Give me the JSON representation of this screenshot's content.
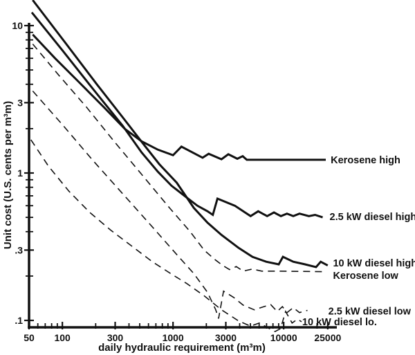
{
  "chart_data": {
    "type": "line",
    "grid": false,
    "legend_position": "right-inline",
    "x_axis": {
      "label": "daily hydraulic requirement (m³m)",
      "scale": "log",
      "range": [
        50,
        28000
      ],
      "major_ticks": [
        {
          "v": 50,
          "label": "50"
        },
        {
          "v": 100,
          "label": "100"
        },
        {
          "v": 300,
          "label": "300"
        },
        {
          "v": 1000,
          "label": "1000"
        },
        {
          "v": 3000,
          "label": "3000"
        },
        {
          "v": 10000,
          "label": "10000"
        },
        {
          "v": 25000,
          "label": "25000"
        }
      ],
      "minor_ticks": [
        60,
        70,
        80,
        90,
        200,
        400,
        500,
        600,
        700,
        800,
        900,
        2000,
        4000,
        5000,
        6000,
        7000,
        8000,
        9000,
        20000
      ]
    },
    "y_axis": {
      "label": "Unit cost (U.S. cents per m³m)",
      "scale": "log",
      "range": [
        0.1,
        15
      ],
      "major_ticks": [
        {
          "v": 10,
          "label": "10"
        },
        {
          "v": 3,
          "label": "3"
        },
        {
          "v": 1,
          "label": "1"
        },
        {
          "v": 0.3,
          "label": ".3"
        },
        {
          "v": 0.1,
          "label": ".1"
        }
      ],
      "minor_ticks": [
        9,
        8,
        7,
        6,
        5,
        4,
        2,
        0.9,
        0.8,
        0.7,
        0.6,
        0.5,
        0.4,
        0.2
      ]
    },
    "series": [
      {
        "id": "kerosene-high",
        "name": "Kerosene high",
        "line": "solid",
        "points": [
          [
            54,
            8.7
          ],
          [
            86,
            6.0
          ],
          [
            143,
            4.1
          ],
          [
            237,
            2.8
          ],
          [
            365,
            2.0
          ],
          [
            520,
            1.64
          ],
          [
            730,
            1.44
          ],
          [
            1000,
            1.32
          ],
          [
            1190,
            1.51
          ],
          [
            1850,
            1.27
          ],
          [
            2100,
            1.35
          ],
          [
            2740,
            1.24
          ],
          [
            3160,
            1.34
          ],
          [
            3810,
            1.25
          ],
          [
            4260,
            1.3
          ],
          [
            4640,
            1.23
          ],
          [
            24000,
            1.23
          ]
        ]
      },
      {
        "id": "diesel-2-5kw-high",
        "name": "2.5 kW diesel high",
        "line": "solid",
        "points": [
          [
            53,
            12.3
          ],
          [
            100,
            6.8
          ],
          [
            190,
            3.7
          ],
          [
            353,
            2.08
          ],
          [
            520,
            1.38
          ],
          [
            730,
            1.02
          ],
          [
            970,
            0.82
          ],
          [
            1300,
            0.69
          ],
          [
            1660,
            0.6
          ],
          [
            2050,
            0.55
          ],
          [
            2290,
            0.52
          ],
          [
            2520,
            0.67
          ],
          [
            3620,
            0.6
          ],
          [
            5020,
            0.51
          ],
          [
            5880,
            0.55
          ],
          [
            7080,
            0.51
          ],
          [
            8170,
            0.54
          ],
          [
            9430,
            0.51
          ],
          [
            10700,
            0.53
          ],
          [
            12200,
            0.51
          ],
          [
            13900,
            0.53
          ],
          [
            16900,
            0.51
          ],
          [
            19200,
            0.52
          ],
          [
            22500,
            0.5
          ]
        ]
      },
      {
        "id": "diesel-10kw-high",
        "name": "10 kW diesel high",
        "line": "solid",
        "points": [
          [
            54,
            14.9
          ],
          [
            107,
            7.6
          ],
          [
            205,
            4.0
          ],
          [
            365,
            2.3
          ],
          [
            520,
            1.63
          ],
          [
            750,
            1.15
          ],
          [
            1080,
            0.86
          ],
          [
            1540,
            0.58
          ],
          [
            2050,
            0.46
          ],
          [
            2740,
            0.38
          ],
          [
            3920,
            0.31
          ],
          [
            5220,
            0.27
          ],
          [
            6940,
            0.25
          ],
          [
            9020,
            0.24
          ],
          [
            9850,
            0.27
          ],
          [
            12200,
            0.25
          ],
          [
            15600,
            0.24
          ],
          [
            19600,
            0.23
          ],
          [
            21600,
            0.25
          ],
          [
            25000,
            0.236
          ]
        ]
      },
      {
        "id": "kerosene-low",
        "name": "Kerosene low",
        "line": "dashed",
        "points": [
          [
            54,
            7.5
          ],
          [
            93,
            4.6
          ],
          [
            165,
            2.8
          ],
          [
            293,
            1.64
          ],
          [
            520,
            0.98
          ],
          [
            930,
            0.58
          ],
          [
            1430,
            0.4
          ],
          [
            1910,
            0.3
          ],
          [
            2370,
            0.26
          ],
          [
            2810,
            0.236
          ],
          [
            3240,
            0.221
          ],
          [
            3730,
            0.232
          ],
          [
            4300,
            0.216
          ],
          [
            5220,
            0.223
          ],
          [
            6330,
            0.216
          ],
          [
            8730,
            0.216
          ],
          [
            24000,
            0.214
          ]
        ]
      },
      {
        "id": "diesel-2-5kw-low",
        "name": "2.5 kW diesel low",
        "line": "dashed",
        "points": [
          [
            54,
            3.6
          ],
          [
            100,
            2.13
          ],
          [
            190,
            1.21
          ],
          [
            365,
            0.7
          ],
          [
            670,
            0.42
          ],
          [
            1080,
            0.28
          ],
          [
            1540,
            0.208
          ],
          [
            2050,
            0.155
          ],
          [
            2430,
            0.118
          ],
          [
            2580,
            0.103
          ],
          [
            2860,
            0.158
          ],
          [
            3540,
            0.143
          ],
          [
            4300,
            0.127
          ],
          [
            5420,
            0.118
          ],
          [
            6630,
            0.124
          ],
          [
            7630,
            0.128
          ],
          [
            8730,
            0.115
          ],
          [
            9740,
            0.124
          ],
          [
            10700,
            0.113
          ],
          [
            12200,
            0.122
          ],
          [
            13900,
            0.113
          ],
          [
            16400,
            0.117
          ]
        ]
      },
      {
        "id": "diesel-10kw-low",
        "name": "10 kW diesel lo.",
        "line": "dashed",
        "points": [
          [
            52,
            1.68
          ],
          [
            75,
            1.11
          ],
          [
            115,
            0.75
          ],
          [
            177,
            0.54
          ],
          [
            273,
            0.41
          ],
          [
            422,
            0.32
          ],
          [
            650,
            0.25
          ],
          [
            970,
            0.206
          ],
          [
            1330,
            0.178
          ],
          [
            1910,
            0.147
          ],
          [
            2740,
            0.118
          ],
          [
            3920,
            0.099
          ],
          [
            5000,
            0.0915
          ],
          [
            6030,
            0.096
          ],
          [
            7260,
            0.0888
          ],
          [
            8360,
            0.084
          ],
          [
            9360,
            0.088
          ],
          [
            10400,
            0.115
          ],
          [
            11900,
            0.096
          ],
          [
            13300,
            0.102
          ],
          [
            14500,
            0.098
          ]
        ]
      }
    ],
    "annotations": [
      {
        "id": "kerosene-high",
        "text": "Kerosene high",
        "v": 26600,
        "c": 1.23
      },
      {
        "id": "diesel-2-5kw-high",
        "text": "2.5 kW diesel high",
        "v": 26000,
        "c": 0.506
      },
      {
        "id": "diesel-10kw-high",
        "text": "10 kW diesel high",
        "v": 27900,
        "c": 0.245
      },
      {
        "id": "kerosene-low",
        "text": "Kerosene low",
        "v": 27900,
        "c": 0.202
      },
      {
        "id": "diesel-2-5kw-low",
        "text": "2.5 kW diesel low",
        "v": 25300,
        "c": 0.116
      },
      {
        "id": "diesel-10kw-low",
        "text": "10 kW diesel lo.",
        "v": 14700,
        "c": 0.098
      }
    ],
    "line_color": "#111111",
    "background_color": "#ffffff"
  }
}
